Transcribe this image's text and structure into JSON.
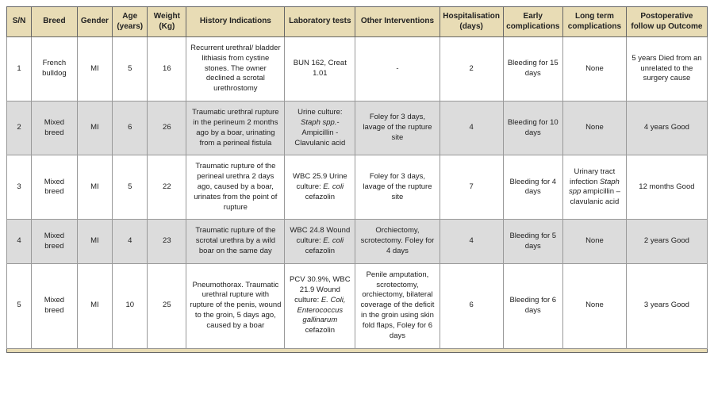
{
  "columns": [
    {
      "key": "sn",
      "label": "S/N"
    },
    {
      "key": "breed",
      "label": "Breed"
    },
    {
      "key": "gender",
      "label": "Gender"
    },
    {
      "key": "age",
      "label": "Age (years)"
    },
    {
      "key": "weight",
      "label": "Weight (Kg)"
    },
    {
      "key": "history",
      "label": "History Indications"
    },
    {
      "key": "lab",
      "label": "Laboratory tests"
    },
    {
      "key": "interventions",
      "label": "Other Interventions"
    },
    {
      "key": "hosp",
      "label": "Hospitalisation (days)"
    },
    {
      "key": "early",
      "label": "Early complications"
    },
    {
      "key": "long",
      "label": "Long term complications"
    },
    {
      "key": "post",
      "label": "Postoperative follow up Outcome"
    }
  ],
  "rows": [
    {
      "sn": "1",
      "breed": "French bulldog",
      "gender": "MI",
      "age": "5",
      "weight": "16",
      "history": "Recurrent urethral/ bladder lithiasis from cystine stones. The owner declined a scrotal urethrostomy",
      "lab": "BUN 162, Creat 1.01",
      "interventions": "-",
      "hosp": "2",
      "early": "Bleeding for 15 days",
      "long": "None",
      "post": "5 years Died from an unrelated to the surgery cause"
    },
    {
      "sn": "2",
      "breed": "Mixed breed",
      "gender": "MI",
      "age": "6",
      "weight": "26",
      "history": "Traumatic urethral rupture in the perineum 2 months ago by a boar, urinating from a perineal fistula",
      "lab": "Urine culture: <em>Staph spp.</em>- Ampicillin - Clavulanic acid",
      "interventions": "Foley for 3 days, lavage of the rupture site",
      "hosp": "4",
      "early": "Bleeding for 10 days",
      "long": "None",
      "post": "4 years Good"
    },
    {
      "sn": "3",
      "breed": "Mixed breed",
      "gender": "MI",
      "age": "5",
      "weight": "22",
      "history": "Traumatic rupture of the perineal urethra 2 days ago, caused by a boar, urinates from the point of rupture",
      "lab": "WBC 25.9 Urine culture: <em>E. coli</em> cefazolin",
      "interventions": "Foley for 3 days, lavage of the rupture site",
      "hosp": "7",
      "early": "Bleeding for 4 days",
      "long": "Urinary tract infection <em>Staph spp</em> ampicillin – clavulanic acid",
      "post": "12 months Good"
    },
    {
      "sn": "4",
      "breed": "Mixed breed",
      "gender": "MI",
      "age": "4",
      "weight": "23",
      "history": "Traumatic rupture of the scrotal urethra by a wild boar on the same day",
      "lab": "WBC 24.8 Wound culture: <em>E. coli</em> cefazolin",
      "interventions": "Orchiectomy, scrotectomy. Foley for 4 days",
      "hosp": "4",
      "early": "Bleeding for 5 days",
      "long": "None",
      "post": "2 years Good"
    },
    {
      "sn": "5",
      "breed": "Mixed breed",
      "gender": "MI",
      "age": "10",
      "weight": "25",
      "history": "Pneumothorax. Traumatic urethral rupture with rupture of the penis, wound to the groin, 5 days ago, caused by a boar",
      "lab": "PCV 30.9%, WBC 21.9 Wound culture: <em>E. Coli, Enterococcus gallinarum</em> cefazolin",
      "interventions": "Penile amputation, scrotectomy, orchiectomy, bilateral coverage of the deficit in the groin using skin fold flaps, Foley for 6 days",
      "hosp": "6",
      "early": "Bleeding for 6 days",
      "long": "None",
      "post": "3 years Good"
    }
  ],
  "colClasses": [
    "col-sn",
    "col-breed",
    "col-gender",
    "col-age",
    "col-weight",
    "col-hist",
    "col-lab",
    "col-int",
    "col-hosp",
    "col-early",
    "col-long",
    "col-post"
  ],
  "colors": {
    "header_bg": "#e8dcb5",
    "shade_bg": "#dcdcdc"
  }
}
